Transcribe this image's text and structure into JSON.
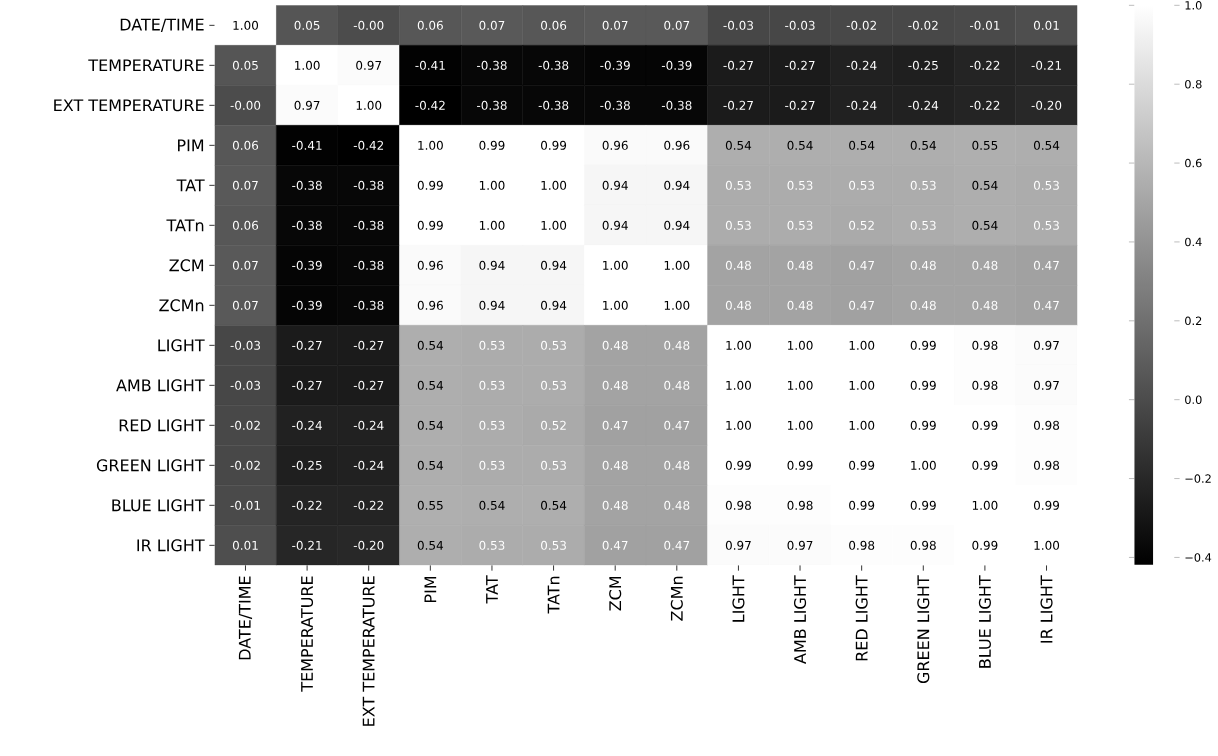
{
  "chart_data": {
    "type": "heatmap",
    "categories": [
      "DATE/TIME",
      "TEMPERATURE",
      "EXT TEMPERATURE",
      "PIM",
      "TAT",
      "TATn",
      "ZCM",
      "ZCMn",
      "LIGHT",
      "AMB LIGHT",
      "RED LIGHT",
      "GREEN LIGHT",
      "BLUE LIGHT",
      "IR LIGHT"
    ],
    "y_categories": [
      "DATE/TIME",
      "TEMPERATURE",
      "EXT TEMPERATURE",
      "PIM",
      "TAT",
      "TATn",
      "ZCM",
      "ZCMn",
      "LIGHT",
      "AMB LIGHT",
      "RED LIGHT",
      "GREEN LIGHT",
      "BLUE LIGHT",
      "IR LIGHT"
    ],
    "cells": [
      [
        1.0,
        0.05,
        -0.0,
        0.06,
        0.07,
        0.06,
        0.07,
        0.07,
        -0.03,
        -0.03,
        -0.02,
        -0.02,
        -0.01,
        0.01
      ],
      [
        0.05,
        1.0,
        0.97,
        -0.41,
        -0.38,
        -0.38,
        -0.39,
        -0.39,
        -0.27,
        -0.27,
        -0.24,
        -0.25,
        -0.22,
        -0.21
      ],
      [
        -0.0,
        0.97,
        1.0,
        -0.42,
        -0.38,
        -0.38,
        -0.38,
        -0.38,
        -0.27,
        -0.27,
        -0.24,
        -0.24,
        -0.22,
        -0.2
      ],
      [
        0.06,
        -0.41,
        -0.42,
        1.0,
        0.99,
        0.99,
        0.96,
        0.96,
        0.54,
        0.54,
        0.54,
        0.54,
        0.55,
        0.54
      ],
      [
        0.07,
        -0.38,
        -0.38,
        0.99,
        1.0,
        1.0,
        0.94,
        0.94,
        0.53,
        0.53,
        0.53,
        0.53,
        0.54,
        0.53
      ],
      [
        0.06,
        -0.38,
        -0.38,
        0.99,
        1.0,
        1.0,
        0.94,
        0.94,
        0.53,
        0.53,
        0.52,
        0.53,
        0.54,
        0.53
      ],
      [
        0.07,
        -0.39,
        -0.38,
        0.96,
        0.94,
        0.94,
        1.0,
        1.0,
        0.48,
        0.48,
        0.47,
        0.48,
        0.48,
        0.47
      ],
      [
        0.07,
        -0.39,
        -0.38,
        0.96,
        0.94,
        0.94,
        1.0,
        1.0,
        0.48,
        0.48,
        0.47,
        0.48,
        0.48,
        0.47
      ],
      [
        -0.03,
        -0.27,
        -0.27,
        0.54,
        0.53,
        0.53,
        0.48,
        0.48,
        1.0,
        1.0,
        1.0,
        0.99,
        0.98,
        0.97
      ],
      [
        -0.03,
        -0.27,
        -0.27,
        0.54,
        0.53,
        0.53,
        0.48,
        0.48,
        1.0,
        1.0,
        1.0,
        0.99,
        0.98,
        0.97
      ],
      [
        -0.02,
        -0.24,
        -0.24,
        0.54,
        0.53,
        0.52,
        0.47,
        0.47,
        1.0,
        1.0,
        1.0,
        0.99,
        0.99,
        0.98
      ],
      [
        -0.02,
        -0.25,
        -0.24,
        0.54,
        0.53,
        0.53,
        0.48,
        0.48,
        0.99,
        0.99,
        0.99,
        1.0,
        0.99,
        0.98
      ],
      [
        -0.01,
        -0.22,
        -0.22,
        0.55,
        0.54,
        0.54,
        0.48,
        0.48,
        0.98,
        0.98,
        0.99,
        0.99,
        1.0,
        0.99
      ],
      [
        0.01,
        -0.21,
        -0.2,
        0.54,
        0.53,
        0.53,
        0.47,
        0.47,
        0.97,
        0.97,
        0.98,
        0.98,
        0.99,
        1.0
      ]
    ],
    "cell_labels": [
      [
        "1.00",
        "0.05",
        "-0.00",
        "0.06",
        "0.07",
        "0.06",
        "0.07",
        "0.07",
        "-0.03",
        "-0.03",
        "-0.02",
        "-0.02",
        "-0.01",
        "0.01"
      ],
      [
        "0.05",
        "1.00",
        "0.97",
        "-0.41",
        "-0.38",
        "-0.38",
        "-0.39",
        "-0.39",
        "-0.27",
        "-0.27",
        "-0.24",
        "-0.25",
        "-0.22",
        "-0.21"
      ],
      [
        "-0.00",
        "0.97",
        "1.00",
        "-0.42",
        "-0.38",
        "-0.38",
        "-0.38",
        "-0.38",
        "-0.27",
        "-0.27",
        "-0.24",
        "-0.24",
        "-0.22",
        "-0.20"
      ],
      [
        "0.06",
        "-0.41",
        "-0.42",
        "1.00",
        "0.99",
        "0.99",
        "0.96",
        "0.96",
        "0.54",
        "0.54",
        "0.54",
        "0.54",
        "0.55",
        "0.54"
      ],
      [
        "0.07",
        "-0.38",
        "-0.38",
        "0.99",
        "1.00",
        "1.00",
        "0.94",
        "0.94",
        "0.53",
        "0.53",
        "0.53",
        "0.53",
        "0.54",
        "0.53"
      ],
      [
        "0.06",
        "-0.38",
        "-0.38",
        "0.99",
        "1.00",
        "1.00",
        "0.94",
        "0.94",
        "0.53",
        "0.53",
        "0.52",
        "0.53",
        "0.54",
        "0.53"
      ],
      [
        "0.07",
        "-0.39",
        "-0.38",
        "0.96",
        "0.94",
        "0.94",
        "1.00",
        "1.00",
        "0.48",
        "0.48",
        "0.47",
        "0.48",
        "0.48",
        "0.47"
      ],
      [
        "0.07",
        "-0.39",
        "-0.38",
        "0.96",
        "0.94",
        "0.94",
        "1.00",
        "1.00",
        "0.48",
        "0.48",
        "0.47",
        "0.48",
        "0.48",
        "0.47"
      ],
      [
        "-0.03",
        "-0.27",
        "-0.27",
        "0.54",
        "0.53",
        "0.53",
        "0.48",
        "0.48",
        "1.00",
        "1.00",
        "1.00",
        "0.99",
        "0.98",
        "0.97"
      ],
      [
        "-0.03",
        "-0.27",
        "-0.27",
        "0.54",
        "0.53",
        "0.53",
        "0.48",
        "0.48",
        "1.00",
        "1.00",
        "1.00",
        "0.99",
        "0.98",
        "0.97"
      ],
      [
        "-0.02",
        "-0.24",
        "-0.24",
        "0.54",
        "0.53",
        "0.52",
        "0.47",
        "0.47",
        "1.00",
        "1.00",
        "1.00",
        "0.99",
        "0.99",
        "0.98"
      ],
      [
        "-0.02",
        "-0.25",
        "-0.24",
        "0.54",
        "0.53",
        "0.53",
        "0.48",
        "0.48",
        "0.99",
        "0.99",
        "0.99",
        "1.00",
        "0.99",
        "0.98"
      ],
      [
        "-0.01",
        "-0.22",
        "-0.22",
        "0.55",
        "0.54",
        "0.54",
        "0.48",
        "0.48",
        "0.98",
        "0.98",
        "0.99",
        "0.99",
        "1.00",
        "0.99"
      ],
      [
        "0.01",
        "-0.21",
        "-0.20",
        "0.54",
        "0.53",
        "0.53",
        "0.47",
        "0.47",
        "0.97",
        "0.97",
        "0.98",
        "0.98",
        "0.99",
        "1.00"
      ]
    ],
    "clim": [
      -0.42,
      1.0
    ],
    "cticks": [
      {
        "value": -0.4,
        "label": "−0.4"
      },
      {
        "value": -0.2,
        "label": "−0.2"
      },
      {
        "value": 0.0,
        "label": "0.0"
      },
      {
        "value": 0.2,
        "label": "0.2"
      },
      {
        "value": 0.4,
        "label": "0.4"
      },
      {
        "value": 0.6,
        "label": "0.6"
      },
      {
        "value": 0.8,
        "label": "0.8"
      },
      {
        "value": 1.0,
        "label": "1.0"
      }
    ]
  }
}
